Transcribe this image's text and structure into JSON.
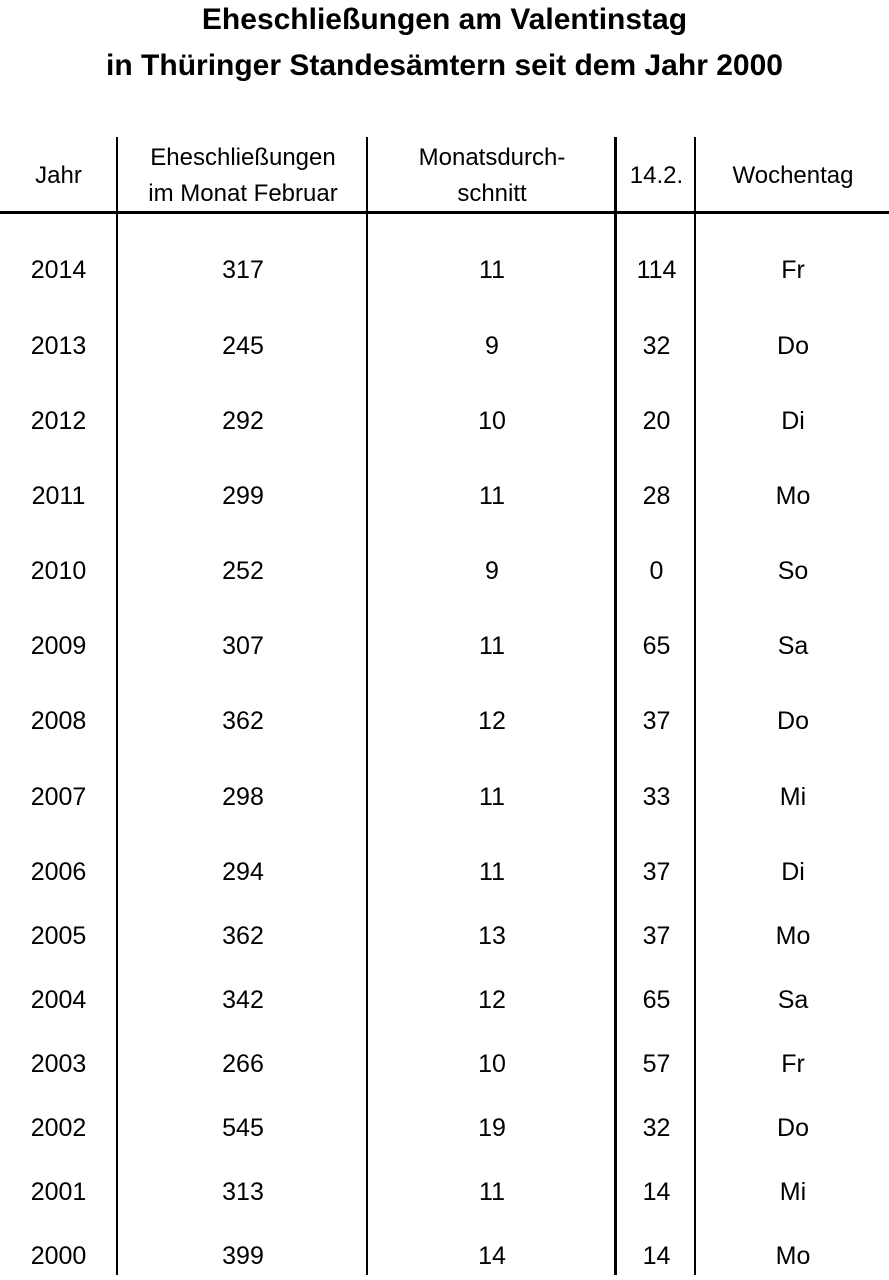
{
  "title": {
    "line1": "Eheschließungen am Valentinstag",
    "line2": "in Thüringer Standesämtern seit dem Jahr 2000"
  },
  "columns": {
    "year": "Jahr",
    "feb_line1": "Eheschließungen",
    "feb_line2": "im Monat Februar",
    "avg_line1": "Monatsdurch-",
    "avg_line2": "schnitt",
    "day": "14.2.",
    "weekday": "Wochentag"
  },
  "rows": [
    {
      "year": "2014",
      "feb": "317",
      "avg": "11",
      "day": "114",
      "weekday": "Fr"
    },
    {
      "year": "2013",
      "feb": "245",
      "avg": "9",
      "day": "32",
      "weekday": "Do"
    },
    {
      "year": "2012",
      "feb": "292",
      "avg": "10",
      "day": "20",
      "weekday": "Di"
    },
    {
      "year": "2011",
      "feb": "299",
      "avg": "11",
      "day": "28",
      "weekday": "Mo"
    },
    {
      "year": "2010",
      "feb": "252",
      "avg": "9",
      "day": "0",
      "weekday": "So"
    },
    {
      "year": "2009",
      "feb": "307",
      "avg": "11",
      "day": "65",
      "weekday": "Sa"
    },
    {
      "year": "2008",
      "feb": "362",
      "avg": "12",
      "day": "37",
      "weekday": "Do"
    },
    {
      "year": "2007",
      "feb": "298",
      "avg": "11",
      "day": "33",
      "weekday": "Mi"
    },
    {
      "year": "2006",
      "feb": "294",
      "avg": "11",
      "day": "37",
      "weekday": "Di"
    },
    {
      "year": "2005",
      "feb": "362",
      "avg": "13",
      "day": "37",
      "weekday": "Mo"
    },
    {
      "year": "2004",
      "feb": "342",
      "avg": "12",
      "day": "65",
      "weekday": "Sa"
    },
    {
      "year": "2003",
      "feb": "266",
      "avg": "10",
      "day": "57",
      "weekday": "Fr"
    },
    {
      "year": "2002",
      "feb": "545",
      "avg": "19",
      "day": "32",
      "weekday": "Do"
    },
    {
      "year": "2001",
      "feb": "313",
      "avg": "11",
      "day": "14",
      "weekday": "Mi"
    },
    {
      "year": "2000",
      "feb": "399",
      "avg": "14",
      "day": "14",
      "weekday": "Mo"
    }
  ]
}
